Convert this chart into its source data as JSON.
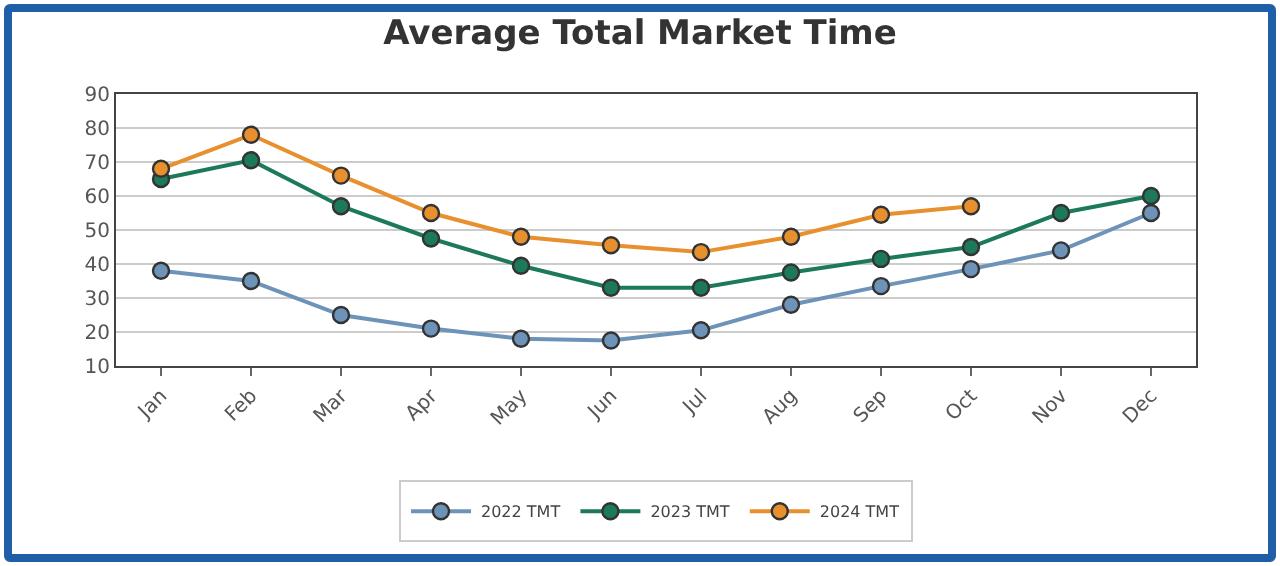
{
  "chart_data": {
    "type": "line",
    "title": "Average Total Market Time",
    "categories": [
      "Jan",
      "Feb",
      "Mar",
      "Apr",
      "May",
      "Jun",
      "Jul",
      "Aug",
      "Sep",
      "Oct",
      "Nov",
      "Dec"
    ],
    "series": [
      {
        "name": "2022 TMT",
        "color": "#6e93b8",
        "values": [
          38,
          35,
          25,
          21,
          18,
          17.5,
          20.5,
          28,
          33.5,
          38.5,
          44,
          55
        ]
      },
      {
        "name": "2023 TMT",
        "color": "#1c7a5a",
        "values": [
          65,
          70.5,
          57,
          47.5,
          39.5,
          33,
          33,
          37.5,
          41.5,
          45,
          55,
          60
        ]
      },
      {
        "name": "2024 TMT",
        "color": "#e8902e",
        "values": [
          68,
          78,
          66,
          55,
          48,
          45.5,
          43.5,
          48,
          54.5,
          57,
          null,
          null
        ]
      }
    ],
    "ylim": [
      10,
      90
    ],
    "yticks": [
      10,
      20,
      30,
      40,
      50,
      60,
      70,
      80,
      90
    ],
    "grid": "y",
    "legend": "bottom",
    "marker": "circle",
    "line_style": "solid"
  }
}
